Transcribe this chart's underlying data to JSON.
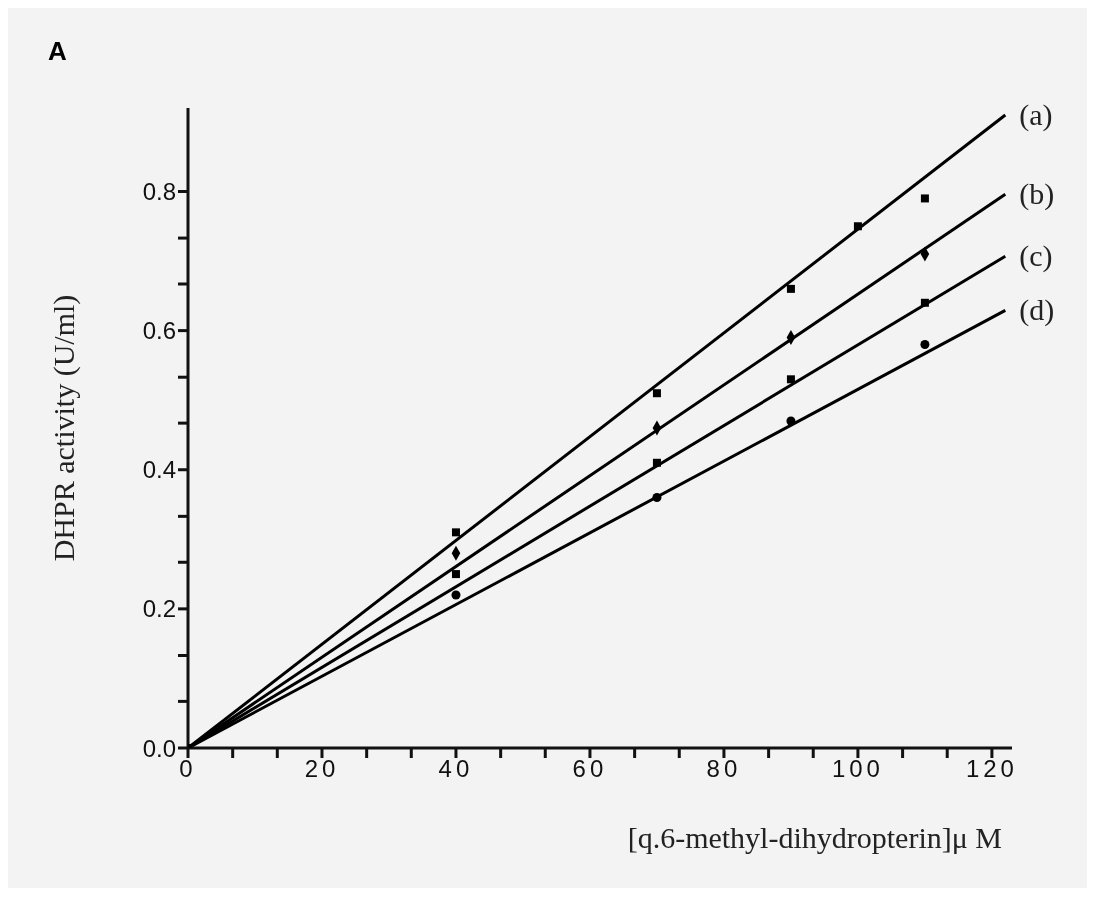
{
  "chart_data": {
    "type": "scatter",
    "xlabel": "[q.6-methyl-dihydropterin]μ M",
    "ylabel": "DHPR activity (U/ml)",
    "annotations": [
      "A"
    ],
    "xlim": [
      0,
      123
    ],
    "ylim": [
      0,
      0.92
    ],
    "xticks": [
      0,
      {
        "value": 6.67,
        "label": null
      },
      {
        "value": 13.33,
        "label": null
      },
      20,
      {
        "value": 26.67,
        "label": null
      },
      {
        "value": 33.33,
        "label": null
      },
      40,
      {
        "value": 46.67,
        "label": null
      },
      {
        "value": 53.33,
        "label": null
      },
      60,
      {
        "value": 66.67,
        "label": null
      },
      {
        "value": 73.33,
        "label": null
      },
      80,
      {
        "value": 86.67,
        "label": null
      },
      {
        "value": 93.33,
        "label": null
      },
      100,
      {
        "value": 106.67,
        "label": null
      },
      {
        "value": 113.33,
        "label": null
      },
      120
    ],
    "yticks": [
      {
        "value": 0,
        "label": "0.0"
      },
      {
        "value": 0.067,
        "label": null
      },
      {
        "value": 0.133,
        "label": null
      },
      0.2,
      {
        "value": 0.267,
        "label": null
      },
      {
        "value": 0.333,
        "label": null
      },
      0.4,
      {
        "value": 0.467,
        "label": null
      },
      {
        "value": 0.533,
        "label": null
      },
      0.6,
      {
        "value": 0.667,
        "label": null
      },
      {
        "value": 0.733,
        "label": null
      },
      0.8
    ],
    "grid": false,
    "legend": false,
    "line_style": "solid",
    "series": [
      {
        "name": "(a)",
        "type": "line",
        "marker": "none",
        "color": "#000000",
        "x": [
          0,
          122
        ],
        "values": [
          0,
          0.91
        ]
      },
      {
        "name": "(b)",
        "type": "line",
        "marker": "none",
        "color": "#000000",
        "x": [
          0,
          122
        ],
        "values": [
          0,
          0.796
        ]
      },
      {
        "name": "(c)",
        "type": "line",
        "marker": "none",
        "color": "#000000",
        "x": [
          0,
          122
        ],
        "values": [
          0,
          0.707
        ]
      },
      {
        "name": "(d)",
        "type": "line",
        "marker": "none",
        "color": "#000000",
        "x": [
          0,
          122
        ],
        "values": [
          0,
          0.629
        ]
      },
      {
        "marker": "square",
        "color": "#000000",
        "x": [
          0,
          40,
          70,
          90,
          100,
          110
        ],
        "values": [
          0,
          0.31,
          0.51,
          0.66,
          0.75,
          0.79
        ]
      },
      {
        "marker": "diamond",
        "color": "#000000",
        "x": [
          40,
          70,
          90,
          110
        ],
        "values": [
          0.28,
          0.46,
          0.59,
          0.71
        ]
      },
      {
        "marker": "square",
        "color": "#000000",
        "x": [
          40,
          70,
          90,
          110
        ],
        "values": [
          0.25,
          0.41,
          0.53,
          0.64
        ]
      },
      {
        "marker": "circle",
        "color": "#000000",
        "x": [
          40,
          70,
          90,
          110
        ],
        "values": [
          0.22,
          0.36,
          0.47,
          0.58
        ]
      }
    ]
  }
}
